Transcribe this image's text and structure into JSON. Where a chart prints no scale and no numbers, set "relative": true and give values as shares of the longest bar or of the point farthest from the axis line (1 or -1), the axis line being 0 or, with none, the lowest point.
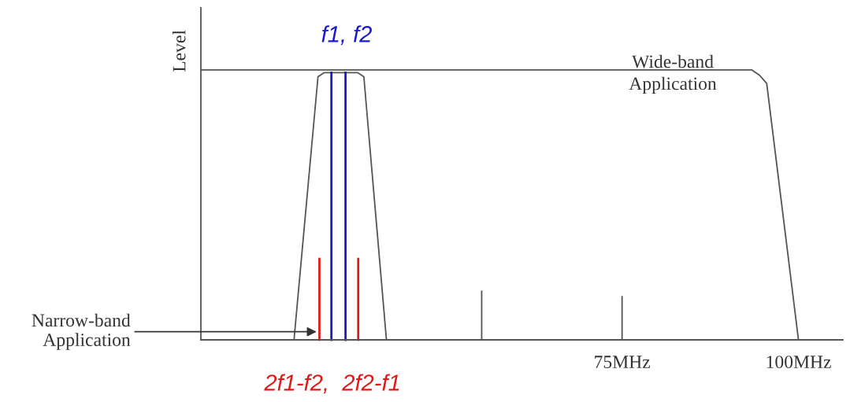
{
  "chart_data": {
    "type": "line",
    "relative": true,
    "ylabel": "Level",
    "xlim": [
      15.3,
      106.3
    ],
    "xticks": [
      {
        "value": 75,
        "label": "75MHz"
      },
      {
        "value": 100,
        "label": "100MHz"
      }
    ],
    "grid": false,
    "legend": false,
    "marker": "none",
    "line_style": "solid",
    "series": [
      {
        "color": "#555555",
        "x": [
          15.3,
          93.4,
          94.5,
          95.5,
          100
        ],
        "values": [
          1,
          1,
          0.98,
          0.95,
          0
        ]
      },
      {
        "color": "#555555",
        "x": [
          28.5,
          31.9,
          32.8,
          37.5,
          38.4,
          41.6
        ],
        "values": [
          0,
          0.975,
          0.99,
          0.99,
          0.975,
          0
        ]
      },
      {
        "color": "#1a1acc",
        "x": [
          33.8,
          33.8
        ],
        "values": [
          0,
          0.99
        ]
      },
      {
        "color": "#1a1acc",
        "x": [
          35.8,
          35.8
        ],
        "values": [
          0,
          0.99
        ]
      },
      {
        "color": "#e01a1a",
        "x": [
          32.1,
          32.1
        ],
        "values": [
          0,
          0.3
        ]
      },
      {
        "color": "#e01a1a",
        "x": [
          37.6,
          37.6
        ],
        "values": [
          0,
          0.3
        ]
      },
      {
        "color": "#555555",
        "x": [
          55.1,
          55.1
        ],
        "values": [
          0,
          0.18
        ]
      },
      {
        "color": "#555555",
        "x": [
          75,
          75
        ],
        "values": [
          0,
          0.16
        ]
      }
    ],
    "annotations": [
      "f1, f2",
      "2f1-f2,  2f2-f1",
      "Wide-band\nApplication",
      {
        "text": "Narrow-band\nApplication",
        "x": 31.7,
        "y": 0.03
      }
    ]
  }
}
